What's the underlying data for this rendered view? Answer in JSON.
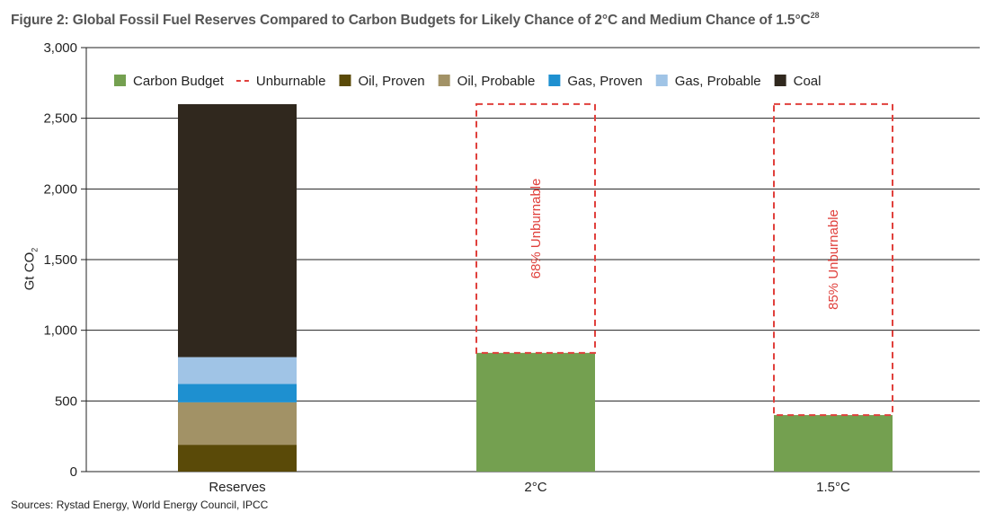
{
  "title": {
    "text": "Figure 2: Global Fossil Fuel Reserves Compared to Carbon Budgets for Likely Chance of 2°C and Medium Chance of 1.5°C",
    "superscript": "28"
  },
  "source": "Sources: Rystad Energy, World Energy Council, IPCC",
  "colors": {
    "carbon_budget": "#74a050",
    "unburnable": "#e0403c",
    "oil_proven": "#5a4a08",
    "oil_probable": "#a29266",
    "gas_proven": "#1e90d0",
    "gas_probable": "#a0c4e6",
    "coal": "#30281e",
    "grid": "#222222",
    "annotation": "#e0403c"
  },
  "chart_data": {
    "type": "bar",
    "stacked": true,
    "title": "Figure 2: Global Fossil Fuel Reserves Compared to Carbon Budgets for Likely Chance of 2°C and Medium Chance of 1.5°C",
    "ylabel": {
      "main": "Gt CO",
      "sub": "2"
    },
    "ylim": [
      0,
      3000
    ],
    "yticks": [
      0,
      500,
      1000,
      1500,
      2000,
      2500,
      3000
    ],
    "ytick_labels": [
      "0",
      "500",
      "1,000",
      "1,500",
      "2,000",
      "2,500",
      "3,000"
    ],
    "grid": true,
    "legend_position": "top",
    "categories": [
      "Reserves",
      "2°C",
      "1.5°C"
    ],
    "legend": [
      {
        "name": "Carbon Budget",
        "key": "carbon_budget",
        "style": "box"
      },
      {
        "name": "Unburnable",
        "key": "unburnable",
        "style": "dash"
      },
      {
        "name": "Oil, Proven",
        "key": "oil_proven",
        "style": "box"
      },
      {
        "name": "Oil, Probable",
        "key": "oil_probable",
        "style": "box"
      },
      {
        "name": "Gas, Proven",
        "key": "gas_proven",
        "style": "box"
      },
      {
        "name": "Gas, Probable",
        "key": "gas_probable",
        "style": "box"
      },
      {
        "name": "Coal",
        "key": "coal",
        "style": "box"
      }
    ],
    "series": [
      {
        "name": "Oil, Proven",
        "key": "oil_proven",
        "values": [
          190,
          0,
          0
        ]
      },
      {
        "name": "Oil, Probable",
        "key": "oil_probable",
        "values": [
          300,
          0,
          0
        ]
      },
      {
        "name": "Gas, Proven",
        "key": "gas_proven",
        "values": [
          130,
          0,
          0
        ]
      },
      {
        "name": "Gas, Probable",
        "key": "gas_probable",
        "values": [
          190,
          0,
          0
        ]
      },
      {
        "name": "Coal",
        "key": "coal",
        "values": [
          1790,
          0,
          0
        ]
      },
      {
        "name": "Carbon Budget",
        "key": "carbon_budget",
        "values": [
          0,
          840,
          400
        ]
      },
      {
        "name": "Unburnable",
        "key": "unburnable",
        "style": "dashed-outline",
        "values": [
          0,
          1760,
          2200
        ]
      }
    ],
    "annotations": [
      {
        "category": "2°C",
        "text": "68% Unburnable"
      },
      {
        "category": "1.5°C",
        "text": "85% Unburnable"
      }
    ]
  }
}
